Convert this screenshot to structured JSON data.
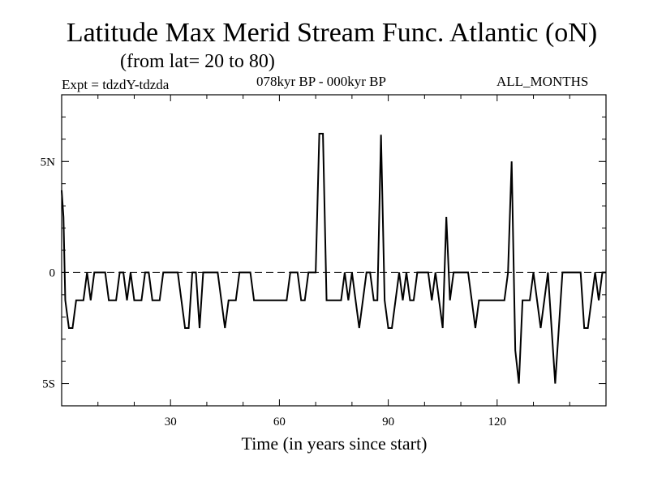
{
  "chart_data": {
    "type": "line",
    "title": "Latitude Max Merid Stream Func. Atlantic (oN)",
    "subtitle": "(from lat= 20 to 80)",
    "experiment": "Expt = tdzdY-tdzda",
    "period": "078kyr BP - 000kyr BP",
    "months": "ALL_MONTHS",
    "xlabel": "Time (in years since start)",
    "ylabel": "",
    "xlim": [
      0,
      150
    ],
    "ylim": [
      -6,
      8
    ],
    "x_ticks": [
      {
        "value": 30,
        "label": "30"
      },
      {
        "value": 60,
        "label": "60"
      },
      {
        "value": 90,
        "label": "90"
      },
      {
        "value": 120,
        "label": "120"
      }
    ],
    "y_ticks": [
      {
        "value": 5,
        "label": "5N"
      },
      {
        "value": 0,
        "label": "0"
      },
      {
        "value": -5,
        "label": "5S"
      }
    ],
    "reference_line": {
      "y": 0,
      "style": "dashed"
    },
    "series": [
      {
        "name": "Max Merid Stream Func. Atlantic",
        "color": "#000000",
        "points": [
          [
            0.0,
            3.7
          ],
          [
            0.5,
            2.5
          ],
          [
            1,
            -1.25
          ],
          [
            2,
            -2.5
          ],
          [
            3,
            -2.5
          ],
          [
            4,
            -1.25
          ],
          [
            5,
            -1.25
          ],
          [
            6,
            -1.25
          ],
          [
            7,
            0
          ],
          [
            8,
            -1.25
          ],
          [
            9,
            0
          ],
          [
            10,
            0
          ],
          [
            11,
            0
          ],
          [
            12,
            0
          ],
          [
            13,
            -1.25
          ],
          [
            14,
            -1.25
          ],
          [
            15,
            -1.25
          ],
          [
            16,
            0
          ],
          [
            17,
            0
          ],
          [
            18,
            -1.25
          ],
          [
            19,
            0
          ],
          [
            20,
            -1.25
          ],
          [
            21,
            -1.25
          ],
          [
            22,
            -1.25
          ],
          [
            23,
            0
          ],
          [
            24,
            0
          ],
          [
            25,
            -1.25
          ],
          [
            26,
            -1.25
          ],
          [
            27,
            -1.25
          ],
          [
            28,
            0
          ],
          [
            29,
            0
          ],
          [
            30,
            0
          ],
          [
            31,
            0
          ],
          [
            32,
            0
          ],
          [
            33,
            -1.25
          ],
          [
            34,
            -2.5
          ],
          [
            35,
            -2.5
          ],
          [
            36,
            0
          ],
          [
            37,
            0
          ],
          [
            38,
            -2.5
          ],
          [
            39,
            0
          ],
          [
            40,
            0
          ],
          [
            41,
            0
          ],
          [
            42,
            0
          ],
          [
            43,
            0
          ],
          [
            44,
            -1.25
          ],
          [
            45,
            -2.5
          ],
          [
            46,
            -1.25
          ],
          [
            47,
            -1.25
          ],
          [
            48,
            -1.25
          ],
          [
            49,
            0
          ],
          [
            50,
            0
          ],
          [
            51,
            0
          ],
          [
            52,
            0
          ],
          [
            53,
            -1.25
          ],
          [
            54,
            -1.25
          ],
          [
            55,
            -1.25
          ],
          [
            56,
            -1.25
          ],
          [
            57,
            -1.25
          ],
          [
            58,
            -1.25
          ],
          [
            59,
            -1.25
          ],
          [
            60,
            -1.25
          ],
          [
            61,
            -1.25
          ],
          [
            62,
            -1.25
          ],
          [
            63,
            0
          ],
          [
            64,
            0
          ],
          [
            65,
            0
          ],
          [
            66,
            -1.25
          ],
          [
            67,
            -1.25
          ],
          [
            68,
            0
          ],
          [
            69,
            0
          ],
          [
            70,
            0
          ],
          [
            71,
            6.25
          ],
          [
            72,
            6.25
          ],
          [
            73,
            -1.25
          ],
          [
            74,
            -1.25
          ],
          [
            75,
            -1.25
          ],
          [
            76,
            -1.25
          ],
          [
            77,
            -1.25
          ],
          [
            78,
            0
          ],
          [
            79,
            -1.25
          ],
          [
            80,
            0
          ],
          [
            81,
            -1.25
          ],
          [
            82,
            -2.5
          ],
          [
            83,
            -1.25
          ],
          [
            84,
            0
          ],
          [
            85,
            0
          ],
          [
            86,
            -1.25
          ],
          [
            87,
            -1.25
          ],
          [
            88,
            6.2
          ],
          [
            89,
            -1.25
          ],
          [
            90,
            -2.5
          ],
          [
            91,
            -2.5
          ],
          [
            92,
            -1.25
          ],
          [
            93,
            0
          ],
          [
            94,
            -1.25
          ],
          [
            95,
            0
          ],
          [
            96,
            -1.25
          ],
          [
            97,
            -1.25
          ],
          [
            98,
            0
          ],
          [
            99,
            0
          ],
          [
            100,
            0
          ],
          [
            101,
            0
          ],
          [
            102,
            -1.25
          ],
          [
            103,
            0
          ],
          [
            104,
            -1.25
          ],
          [
            105,
            -2.5
          ],
          [
            106,
            2.5
          ],
          [
            107,
            -1.25
          ],
          [
            108,
            0
          ],
          [
            109,
            0
          ],
          [
            110,
            0
          ],
          [
            111,
            0
          ],
          [
            112,
            0
          ],
          [
            113,
            -1.25
          ],
          [
            114,
            -2.5
          ],
          [
            115,
            -1.25
          ],
          [
            116,
            -1.25
          ],
          [
            117,
            -1.25
          ],
          [
            118,
            -1.25
          ],
          [
            119,
            -1.25
          ],
          [
            120,
            -1.25
          ],
          [
            121,
            -1.25
          ],
          [
            122,
            -1.25
          ],
          [
            123,
            0
          ],
          [
            124,
            5.0
          ],
          [
            125,
            -3.5
          ],
          [
            126,
            -5.0
          ],
          [
            127,
            -1.25
          ],
          [
            128,
            -1.25
          ],
          [
            129,
            -1.25
          ],
          [
            130,
            0
          ],
          [
            131,
            -1.25
          ],
          [
            132,
            -2.5
          ],
          [
            133,
            -1.25
          ],
          [
            134,
            0
          ],
          [
            135,
            -2.5
          ],
          [
            136,
            -5.0
          ],
          [
            137,
            -2.5
          ],
          [
            138,
            0
          ],
          [
            139,
            0
          ],
          [
            140,
            0
          ],
          [
            141,
            0
          ],
          [
            142,
            0
          ],
          [
            143,
            0
          ],
          [
            144,
            -2.5
          ],
          [
            145,
            -2.5
          ],
          [
            146,
            -1.25
          ],
          [
            147,
            0
          ],
          [
            148,
            -1.25
          ],
          [
            149,
            0
          ],
          [
            150,
            0
          ]
        ]
      }
    ]
  }
}
